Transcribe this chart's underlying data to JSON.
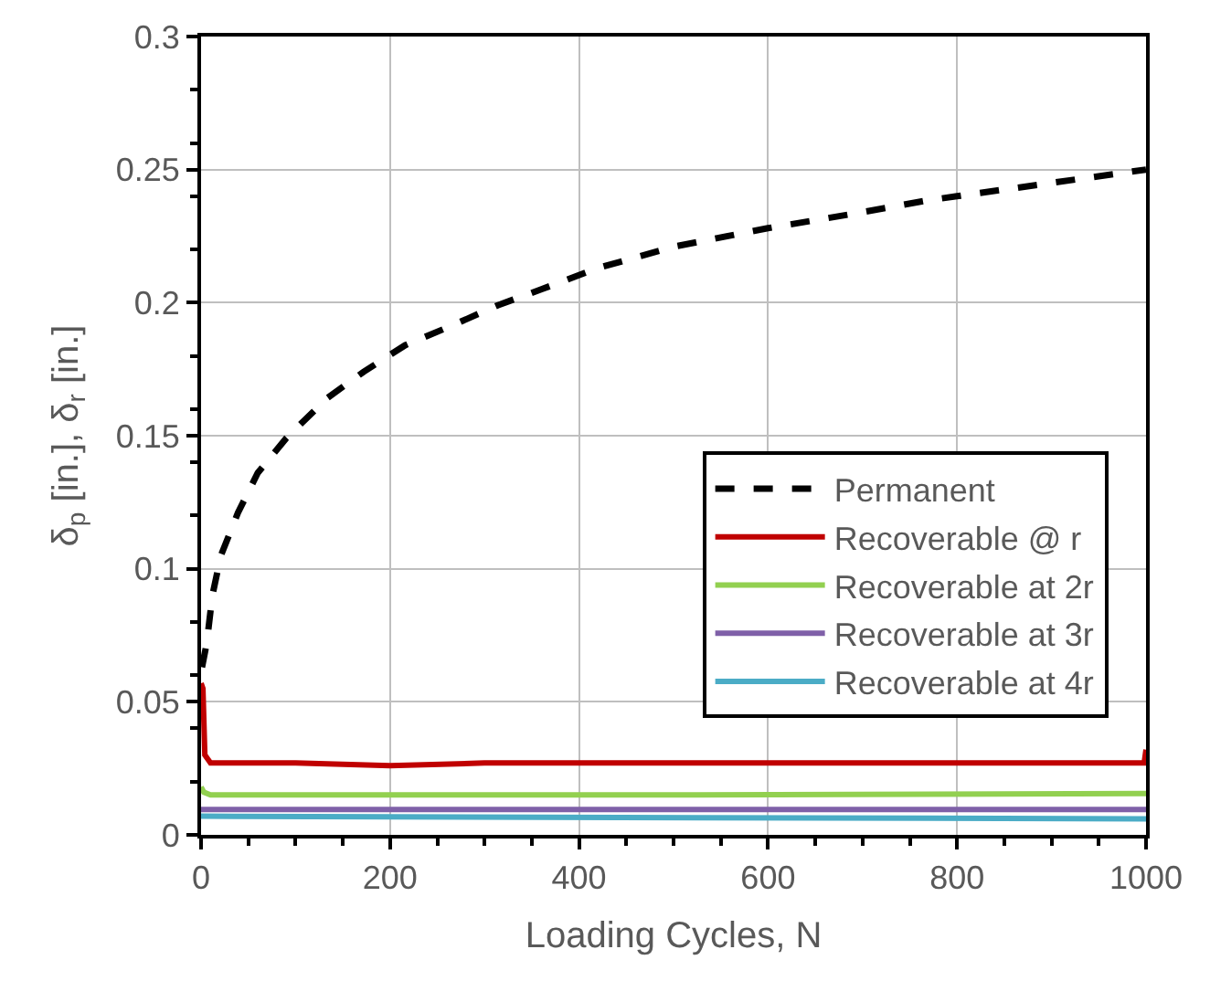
{
  "chart_data": {
    "type": "line",
    "xlabel": "Loading Cycles, N",
    "ylabel": "δ$_{p}$ [in.], δ$_{r}$ [in.]",
    "xlim": [
      0,
      1000
    ],
    "xticks": [
      0,
      200,
      400,
      600,
      800,
      1000
    ],
    "ylim": [
      0,
      0.3
    ],
    "yticks": [
      0,
      0.05,
      0.1,
      0.15,
      0.2,
      0.25,
      0.3
    ],
    "grid": true,
    "legend": "right",
    "marker": "none",
    "series": [
      {
        "name": "Permanent",
        "color": "#000000",
        "line_style": "dashed",
        "x": [
          1,
          6,
          12,
          21,
          39,
          60,
          90,
          133,
          172,
          216,
          263,
          314,
          360,
          420,
          500,
          600,
          700,
          770,
          800,
          900,
          1000
        ],
        "values": [
          0.063,
          0.072,
          0.09,
          0.105,
          0.121,
          0.136,
          0.149,
          0.164,
          0.174,
          0.184,
          0.191,
          0.199,
          0.205,
          0.213,
          0.221,
          0.228,
          0.234,
          0.2385,
          0.24,
          0.245,
          0.25
        ]
      },
      {
        "name": "Recoverable @ r",
        "color": "#c00000",
        "line_style": "solid",
        "x": [
          0,
          2,
          4,
          10,
          100,
          200,
          300,
          400,
          500,
          600,
          700,
          800,
          900,
          998,
          1000
        ],
        "values": [
          0.057,
          0.055,
          0.03,
          0.027,
          0.027,
          0.026,
          0.027,
          0.027,
          0.027,
          0.027,
          0.027,
          0.027,
          0.027,
          0.027,
          0.032
        ]
      },
      {
        "name": "Recoverable at 2r",
        "color": "#92d050",
        "line_style": "solid",
        "x": [
          0,
          3,
          10,
          500,
          1000
        ],
        "values": [
          0.018,
          0.016,
          0.015,
          0.015,
          0.0155
        ]
      },
      {
        "name": "Recoverable at 3r",
        "color": "#7f60a8",
        "line_style": "solid",
        "x": [
          0,
          1000
        ],
        "values": [
          0.0095,
          0.0095
        ]
      },
      {
        "name": "Recoverable at 4r",
        "color": "#4bacc6",
        "line_style": "solid",
        "x": [
          0,
          1000
        ],
        "values": [
          0.007,
          0.006
        ]
      }
    ]
  }
}
